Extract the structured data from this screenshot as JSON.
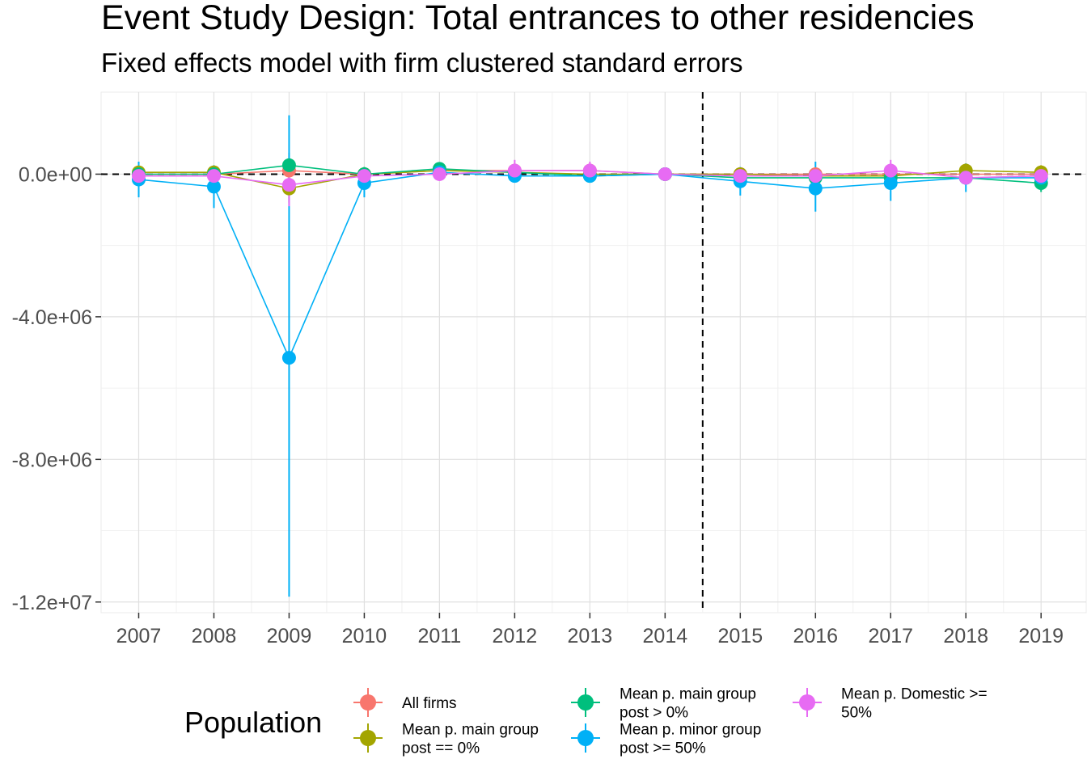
{
  "chart_data": {
    "type": "line",
    "title": "Event Study Design: Total entrances to other residencies",
    "subtitle": "Fixed effects model with firm clustered standard errors",
    "xlabel": "",
    "ylabel": "",
    "x": [
      2007,
      2008,
      2009,
      2010,
      2011,
      2012,
      2013,
      2014,
      2015,
      2016,
      2017,
      2018,
      2019
    ],
    "x_tick_labels": [
      "2007",
      "2008",
      "2009",
      "2010",
      "2011",
      "2012",
      "2013",
      "2014",
      "2015",
      "2016",
      "2017",
      "2018",
      "2019"
    ],
    "xlim": [
      2006.5,
      2019.6
    ],
    "ylim": [
      -12300000,
      2300000
    ],
    "y_ticks": [
      0,
      -4000000,
      -8000000,
      -12000000
    ],
    "y_tick_labels": [
      "0.0e+00",
      "-4.0e+06",
      "-8.0e+06",
      "-1.2e+07"
    ],
    "hline": 0,
    "vline": 2014.5,
    "grid": true,
    "legend": {
      "title": "Population",
      "placement": "bottom"
    },
    "series": [
      {
        "name": "All firms",
        "legend_label_lines": [
          "All firms"
        ],
        "color": "#F8766D",
        "values": [
          0,
          0,
          100000,
          0,
          100000,
          100000,
          100000,
          0,
          0,
          0,
          0,
          0,
          0
        ],
        "lower": [
          -100000,
          -100000,
          -200000,
          -100000,
          0,
          0,
          0,
          0,
          -100000,
          -100000,
          -100000,
          -100000,
          -100000
        ],
        "upper": [
          100000,
          100000,
          400000,
          100000,
          200000,
          200000,
          200000,
          0,
          100000,
          100000,
          100000,
          100000,
          100000
        ]
      },
      {
        "name": "Mean p. main group post == 0%",
        "legend_label_lines": [
          "Mean p. main group",
          "post == 0%"
        ],
        "color": "#A3A500",
        "values": [
          50000,
          50000,
          -400000,
          0,
          100000,
          50000,
          0,
          0,
          0,
          -50000,
          -50000,
          100000,
          50000
        ],
        "lower": [
          -150000,
          -150000,
          -800000,
          -200000,
          -50000,
          -100000,
          -150000,
          0,
          -150000,
          -200000,
          -200000,
          -100000,
          -150000
        ],
        "upper": [
          250000,
          250000,
          0,
          200000,
          250000,
          200000,
          150000,
          0,
          150000,
          100000,
          100000,
          300000,
          250000
        ]
      },
      {
        "name": "Mean p. main group post > 0%",
        "legend_label_lines": [
          "Mean p. main group",
          "post > 0%"
        ],
        "color": "#00BF7D",
        "values": [
          0,
          0,
          250000,
          0,
          150000,
          50000,
          -50000,
          0,
          -100000,
          -100000,
          -100000,
          -100000,
          -250000
        ],
        "lower": [
          -200000,
          -200000,
          -100000,
          -200000,
          0,
          -100000,
          -200000,
          0,
          -300000,
          -300000,
          -300000,
          -300000,
          -500000
        ],
        "upper": [
          200000,
          200000,
          600000,
          200000,
          300000,
          200000,
          100000,
          0,
          100000,
          100000,
          100000,
          100000,
          0
        ]
      },
      {
        "name": "Mean p. minor group post >= 50%",
        "legend_label_lines": [
          "Mean p. minor group",
          "post >= 50%"
        ],
        "color": "#00B0F6",
        "values": [
          -150000,
          -350000,
          -5150000,
          -250000,
          50000,
          -50000,
          -50000,
          0,
          -200000,
          -400000,
          -250000,
          -100000,
          -100000
        ],
        "lower": [
          -650000,
          -950000,
          -11850000,
          -650000,
          -100000,
          -200000,
          -200000,
          0,
          -600000,
          -1050000,
          -750000,
          -500000,
          -400000
        ],
        "upper": [
          350000,
          250000,
          1650000,
          150000,
          200000,
          100000,
          100000,
          0,
          200000,
          350000,
          250000,
          300000,
          200000
        ]
      },
      {
        "name": "Mean p. Domestic >= 50%",
        "legend_label_lines": [
          "Mean p. Domestic >=",
          "50%"
        ],
        "color": "#E76BF3",
        "values": [
          -50000,
          -50000,
          -300000,
          -50000,
          0,
          100000,
          100000,
          0,
          -50000,
          -50000,
          100000,
          -100000,
          -50000
        ],
        "lower": [
          -250000,
          -250000,
          -900000,
          -250000,
          -150000,
          -200000,
          -150000,
          0,
          -250000,
          -250000,
          -200000,
          -300000,
          -250000
        ],
        "upper": [
          150000,
          150000,
          300000,
          150000,
          150000,
          400000,
          350000,
          0,
          150000,
          150000,
          400000,
          100000,
          150000
        ]
      }
    ]
  }
}
